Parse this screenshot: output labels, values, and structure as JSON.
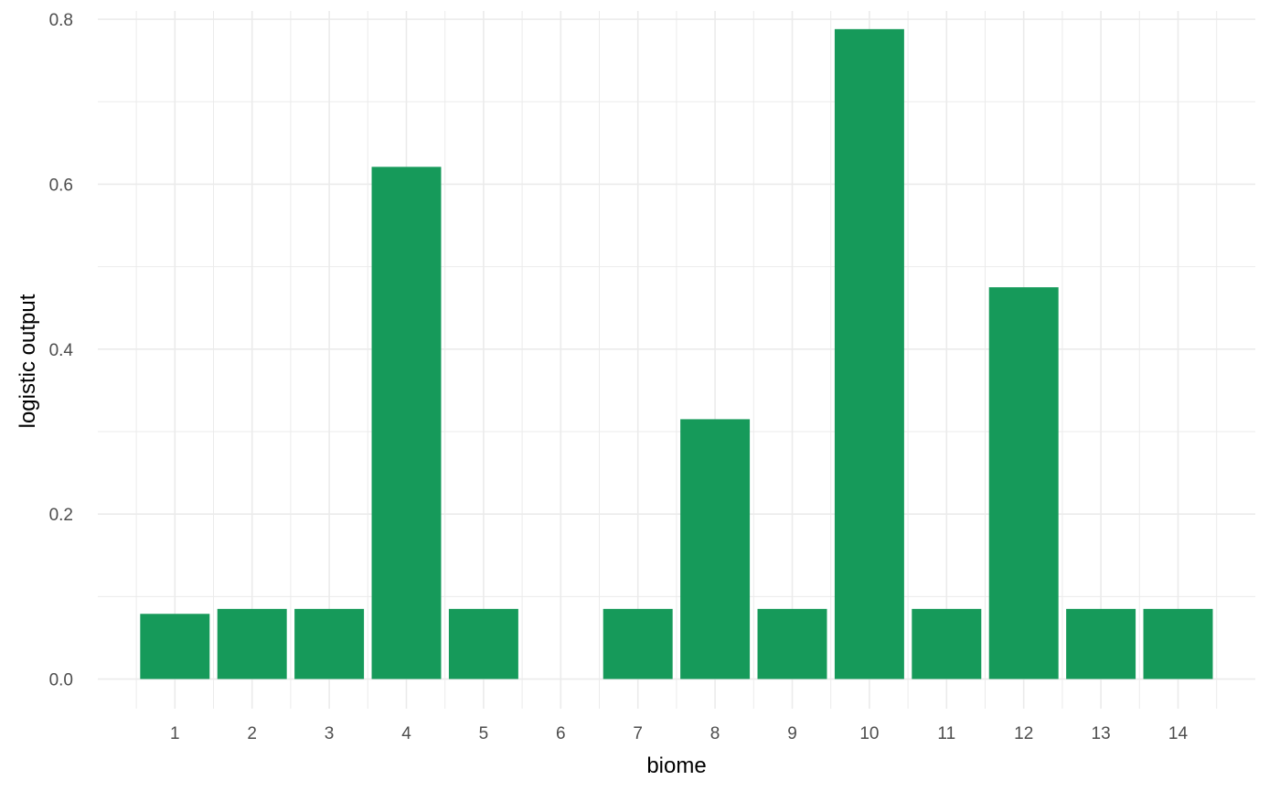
{
  "chart_data": {
    "type": "bar",
    "categories": [
      "1",
      "2",
      "3",
      "4",
      "5",
      "6",
      "7",
      "8",
      "9",
      "10",
      "11",
      "12",
      "13",
      "14"
    ],
    "values": [
      0.079,
      0.085,
      0.085,
      0.621,
      0.085,
      0,
      0.085,
      0.315,
      0.085,
      0.788,
      0.085,
      0.475,
      0.085,
      0.085
    ],
    "title": "",
    "xlabel": "biome",
    "ylabel": "logistic output",
    "ylim": [
      -0.036,
      0.81
    ],
    "yticks": [
      "0.0",
      "0.2",
      "0.4",
      "0.6",
      "0.8"
    ],
    "grid": true,
    "bar_color": "#169a5a",
    "grid_color": "#ebebeb"
  }
}
